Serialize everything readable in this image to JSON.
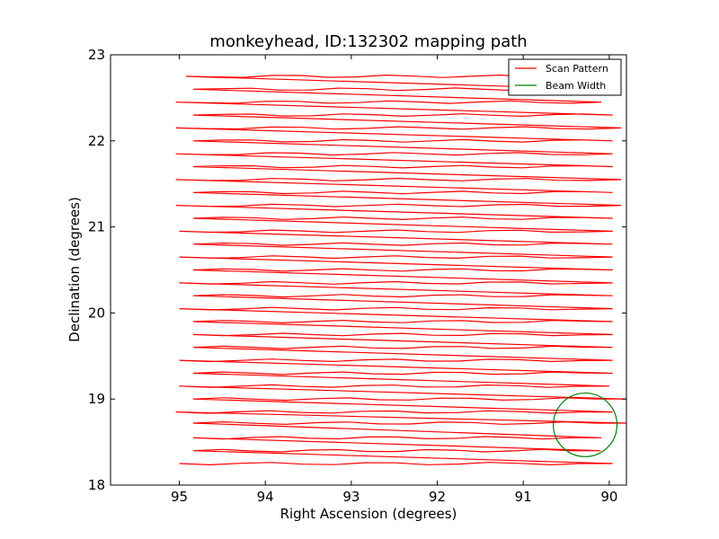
{
  "chart_data": {
    "type": "line",
    "title": "monkeyhead, ID:132302 mapping path",
    "xlabel": "Right Ascension (degrees)",
    "ylabel": "Declination (degrees)",
    "xlim": [
      95.8,
      89.8
    ],
    "ylim": [
      18,
      23
    ],
    "x_ticks": [
      "95",
      "94",
      "93",
      "92",
      "91",
      "90"
    ],
    "x_tick_values": [
      95,
      94,
      93,
      92,
      91,
      90
    ],
    "y_ticks": [
      "18",
      "19",
      "20",
      "21",
      "22",
      "23"
    ],
    "y_tick_values": [
      18,
      19,
      20,
      21,
      22,
      23
    ],
    "legend_position": "top-right",
    "series": [
      {
        "name": "Scan Pattern",
        "color": "#ff0000",
        "scan_rows": [
          {
            "dec": 18.25,
            "x_start": 95.0,
            "x_end": 89.96
          },
          {
            "dec": 18.4,
            "x_start": 94.84,
            "x_end": 90.1
          },
          {
            "dec": 18.55,
            "x_start": 94.84,
            "x_end": 90.09
          },
          {
            "dec": 18.72,
            "x_start": 94.84,
            "x_end": 89.8
          },
          {
            "dec": 18.85,
            "x_start": 95.04,
            "x_end": 89.96
          },
          {
            "dec": 19.0,
            "x_start": 94.84,
            "x_end": 89.8
          },
          {
            "dec": 19.15,
            "x_start": 95.0,
            "x_end": 90.0
          },
          {
            "dec": 19.3,
            "x_start": 94.84,
            "x_end": 89.96
          },
          {
            "dec": 19.45,
            "x_start": 95.0,
            "x_end": 89.96
          },
          {
            "dec": 19.6,
            "x_start": 94.84,
            "x_end": 89.96
          },
          {
            "dec": 19.75,
            "x_start": 94.84,
            "x_end": 89.96
          },
          {
            "dec": 19.9,
            "x_start": 94.84,
            "x_end": 89.96
          },
          {
            "dec": 20.05,
            "x_start": 95.0,
            "x_end": 89.96
          },
          {
            "dec": 20.2,
            "x_start": 94.84,
            "x_end": 89.96
          },
          {
            "dec": 20.35,
            "x_start": 95.0,
            "x_end": 89.96
          },
          {
            "dec": 20.5,
            "x_start": 94.84,
            "x_end": 89.96
          },
          {
            "dec": 20.65,
            "x_start": 95.0,
            "x_end": 89.96
          },
          {
            "dec": 20.8,
            "x_start": 94.84,
            "x_end": 89.96
          },
          {
            "dec": 20.95,
            "x_start": 95.0,
            "x_end": 89.96
          },
          {
            "dec": 21.1,
            "x_start": 94.84,
            "x_end": 89.96
          },
          {
            "dec": 21.25,
            "x_start": 95.04,
            "x_end": 89.86
          },
          {
            "dec": 21.4,
            "x_start": 94.84,
            "x_end": 89.96
          },
          {
            "dec": 21.55,
            "x_start": 95.04,
            "x_end": 89.86
          },
          {
            "dec": 21.7,
            "x_start": 94.84,
            "x_end": 89.96
          },
          {
            "dec": 21.85,
            "x_start": 95.04,
            "x_end": 89.96
          },
          {
            "dec": 22.0,
            "x_start": 94.84,
            "x_end": 89.96
          },
          {
            "dec": 22.15,
            "x_start": 95.04,
            "x_end": 89.86
          },
          {
            "dec": 22.3,
            "x_start": 94.84,
            "x_end": 89.96
          },
          {
            "dec": 22.45,
            "x_start": 95.04,
            "x_end": 90.09
          },
          {
            "dec": 22.6,
            "x_start": 94.84,
            "x_end": 90.1
          },
          {
            "dec": 22.75,
            "x_start": 94.92,
            "x_end": 90.28
          }
        ]
      },
      {
        "name": "Beam Width",
        "color": "#008000",
        "center": [
          90.28,
          18.7
        ],
        "radius": 0.37
      }
    ]
  }
}
